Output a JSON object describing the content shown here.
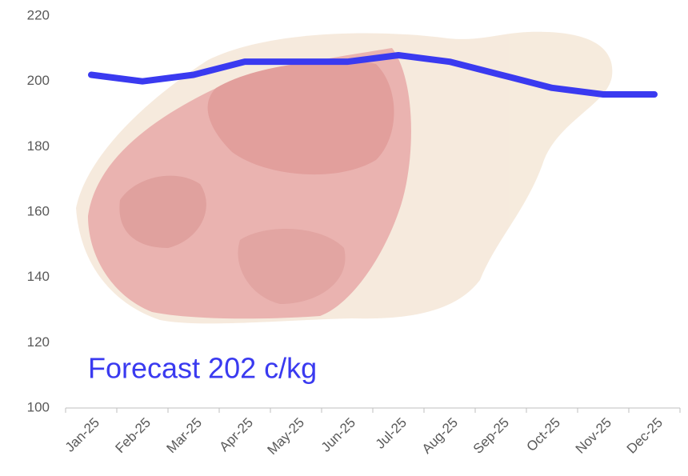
{
  "chart_data": {
    "type": "line",
    "categories": [
      "Jan-25",
      "Feb-25",
      "Mar-25",
      "Apr-25",
      "May-25",
      "Jun-25",
      "Jul-25",
      "Aug-25",
      "Sep-25",
      "Oct-25",
      "Nov-25",
      "Dec-25"
    ],
    "values": [
      202,
      200,
      202,
      206,
      206,
      206,
      208,
      206,
      202,
      198,
      196,
      196
    ],
    "color": "#3a3af0",
    "ylim": [
      100,
      220
    ],
    "yticks": [
      100,
      120,
      140,
      160,
      180,
      200,
      220
    ],
    "annotation": "Forecast 202 c/kg"
  }
}
